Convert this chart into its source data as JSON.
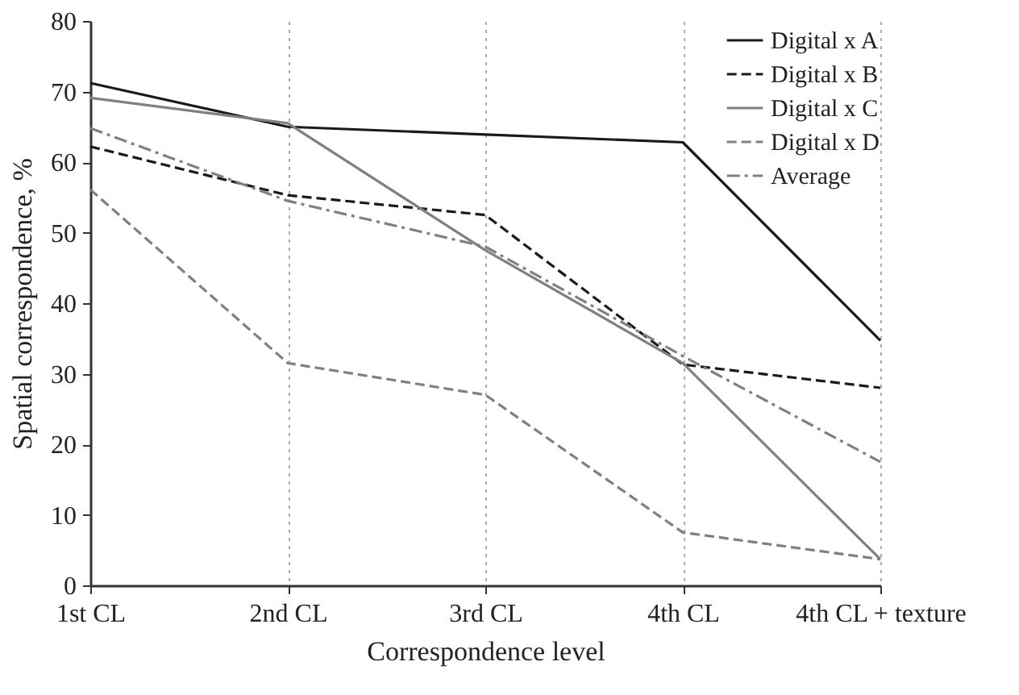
{
  "chart_data": {
    "type": "line",
    "xlabel": "Correspondence level",
    "ylabel": "Spatial correspondence, %",
    "categories": [
      "1st CL",
      "2nd CL",
      "3rd CL",
      "4th CL",
      "4th CL + texture"
    ],
    "series": [
      {
        "name": "Digital x A",
        "color": "#1a1a1a",
        "line_style": "solid",
        "values": [
          71.2,
          65,
          63.9,
          62.8,
          34.7
        ]
      },
      {
        "name": "Digital x B",
        "color": "#1a1a1a",
        "line_style": "dashed",
        "values": [
          62.2,
          55.3,
          52.5,
          31.3,
          28
        ]
      },
      {
        "name": "Digital x C",
        "color": "#808080",
        "line_style": "solid",
        "values": [
          69.1,
          65.5,
          47.5,
          31.5,
          3.7
        ]
      },
      {
        "name": "Digital x D",
        "color": "#808080",
        "line_style": "dashed",
        "values": [
          56.1,
          31.5,
          27,
          7.5,
          3.7
        ]
      },
      {
        "name": "Average",
        "color": "#808080",
        "line_style": "dashdot",
        "values": [
          64.8,
          54.5,
          48,
          32.5,
          17.5
        ]
      }
    ],
    "ylim": [
      0,
      80
    ],
    "yticks": [
      0,
      10,
      20,
      30,
      40,
      50,
      60,
      70,
      80
    ],
    "grid": "x",
    "legend": "top right"
  }
}
